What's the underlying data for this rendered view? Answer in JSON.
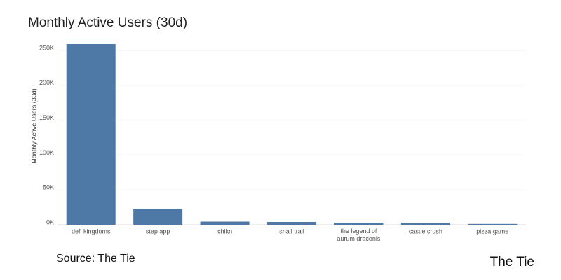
{
  "chart_data": {
    "type": "bar",
    "title": "Monthly Active Users (30d)",
    "y_label": "Monthly Active Users (30d)",
    "categories": [
      "defi kingdoms",
      "step app",
      "chikn",
      "snail trail",
      "the legend of aurum draconis",
      "castle crush",
      "pizza game"
    ],
    "values": [
      259000,
      23000,
      4500,
      4000,
      3000,
      2500,
      1200
    ],
    "color": "#4e79a7",
    "ylim": [
      0,
      262000
    ],
    "yticks": [
      {
        "value": 0,
        "label": "0K"
      },
      {
        "value": 50000,
        "label": "50K"
      },
      {
        "value": 100000,
        "label": "100K"
      },
      {
        "value": 150000,
        "label": "150K"
      },
      {
        "value": 200000,
        "label": "200K"
      },
      {
        "value": 250000,
        "label": "250K"
      }
    ],
    "grid": true,
    "source": "Source: The Tie",
    "logo": "The Tie"
  }
}
